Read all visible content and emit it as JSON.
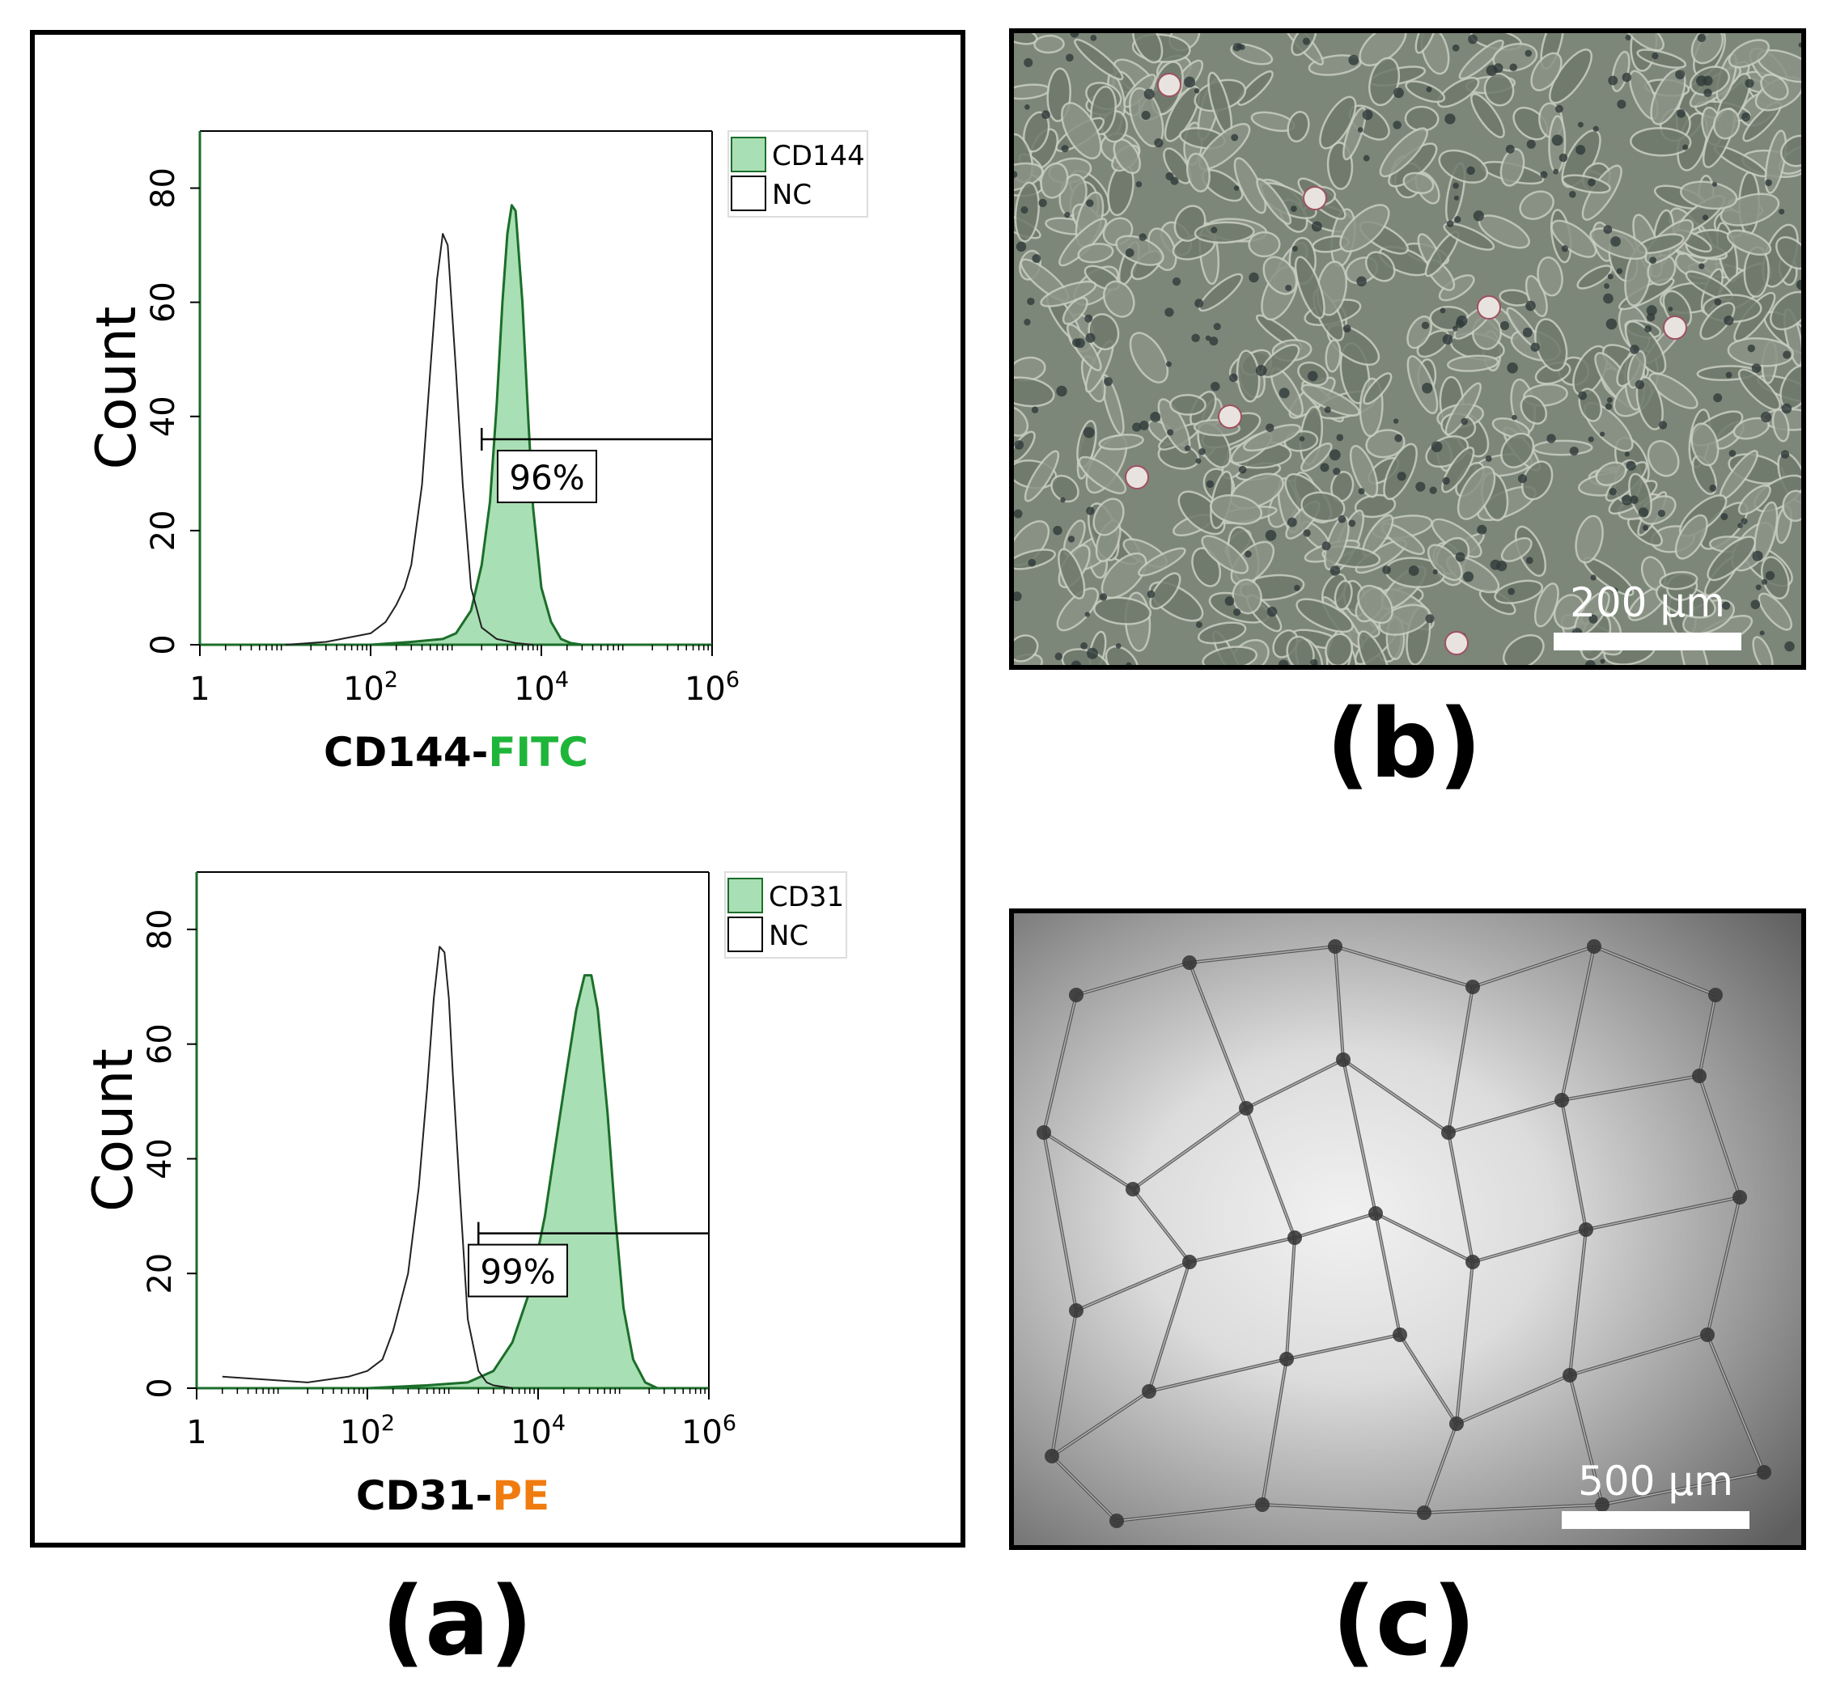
{
  "panels": {
    "a": {
      "label": "(a)"
    },
    "b": {
      "label": "(b)",
      "scalebar_label": "200 µm"
    },
    "c": {
      "label": "(c)",
      "scalebar_label": "500 µm"
    }
  },
  "colors": {
    "fill_green": "#a9dfb4",
    "line_green": "#1b6e2a",
    "fitc_green": "#1fb53a",
    "pe_orange": "#f07c10",
    "nc_line": "#222222"
  },
  "chart_data": [
    {
      "type": "area",
      "ylabel": "Count",
      "xlabel_prefix": "CD144-",
      "xlabel_suffix": "FITC",
      "x_scale": "log",
      "xlim": [
        1,
        1000000
      ],
      "ylim": [
        0,
        90
      ],
      "x_ticks": [
        1,
        100,
        10000,
        1000000
      ],
      "x_tick_labels": [
        "1",
        "10",
        "10",
        "10"
      ],
      "x_tick_exponents": [
        "",
        "2",
        "4",
        "6"
      ],
      "y_ticks": [
        0,
        20,
        40,
        60,
        80
      ],
      "y_tick_labels": [
        "0",
        "20",
        "40",
        "60",
        "80"
      ],
      "legend": {
        "position": "top-right",
        "entries": [
          "CD144",
          "NC"
        ]
      },
      "gate": {
        "x_start": 2000,
        "x_end": 1000000,
        "y": 36,
        "label": "96%"
      },
      "series": [
        {
          "name": "CD144",
          "filled": true,
          "x": [
            100,
            300,
            700,
            1000,
            1500,
            2000,
            2500,
            3000,
            3500,
            4000,
            4500,
            5000,
            6000,
            7000,
            8000,
            10000,
            13000,
            17000,
            22000,
            30000
          ],
          "y": [
            0,
            0.5,
            1,
            2,
            6,
            14,
            25,
            42,
            60,
            72,
            77,
            76,
            60,
            40,
            24,
            10,
            4,
            1,
            0.3,
            0
          ]
        },
        {
          "name": "NC",
          "filled": false,
          "x": [
            10,
            30,
            100,
            150,
            200,
            250,
            300,
            400,
            500,
            600,
            700,
            800,
            1000,
            1200,
            1500,
            2000,
            3000,
            5000,
            8000
          ],
          "y": [
            0,
            0.5,
            2,
            4,
            7,
            10,
            14,
            28,
            48,
            64,
            72,
            70,
            48,
            28,
            10,
            3,
            1,
            0.3,
            0
          ]
        }
      ]
    },
    {
      "type": "area",
      "ylabel": "Count",
      "xlabel_prefix": "CD31-",
      "xlabel_suffix": "PE",
      "x_scale": "log",
      "xlim": [
        1,
        1000000
      ],
      "ylim": [
        0,
        90
      ],
      "x_ticks": [
        1,
        100,
        10000,
        1000000
      ],
      "x_tick_labels": [
        "1",
        "10",
        "10",
        "10"
      ],
      "x_tick_exponents": [
        "",
        "2",
        "4",
        "6"
      ],
      "y_ticks": [
        0,
        20,
        40,
        60,
        80
      ],
      "y_tick_labels": [
        "0",
        "20",
        "40",
        "60",
        "80"
      ],
      "legend": {
        "position": "top-right",
        "entries": [
          "CD31",
          "NC"
        ]
      },
      "gate": {
        "x_start": 2000,
        "x_end": 1000000,
        "y": 27,
        "label": "99%"
      },
      "series": [
        {
          "name": "CD31",
          "filled": true,
          "x": [
            100,
            500,
            1500,
            3000,
            5000,
            8000,
            12000,
            17000,
            22000,
            28000,
            35000,
            42000,
            50000,
            65000,
            80000,
            100000,
            130000,
            180000,
            250000
          ],
          "y": [
            0,
            0.5,
            1,
            3,
            8,
            17,
            30,
            45,
            56,
            66,
            72,
            72,
            66,
            48,
            30,
            14,
            5,
            1,
            0
          ]
        },
        {
          "name": "NC",
          "filled": false,
          "x": [
            2,
            20,
            60,
            100,
            150,
            200,
            300,
            400,
            500,
            600,
            700,
            800,
            900,
            1000,
            1200,
            1500,
            2000,
            2500,
            3000,
            5000
          ],
          "y": [
            2,
            1,
            2,
            3,
            5,
            10,
            20,
            35,
            52,
            68,
            77,
            76,
            68,
            55,
            35,
            12,
            3,
            1,
            0.5,
            0
          ]
        }
      ]
    }
  ]
}
